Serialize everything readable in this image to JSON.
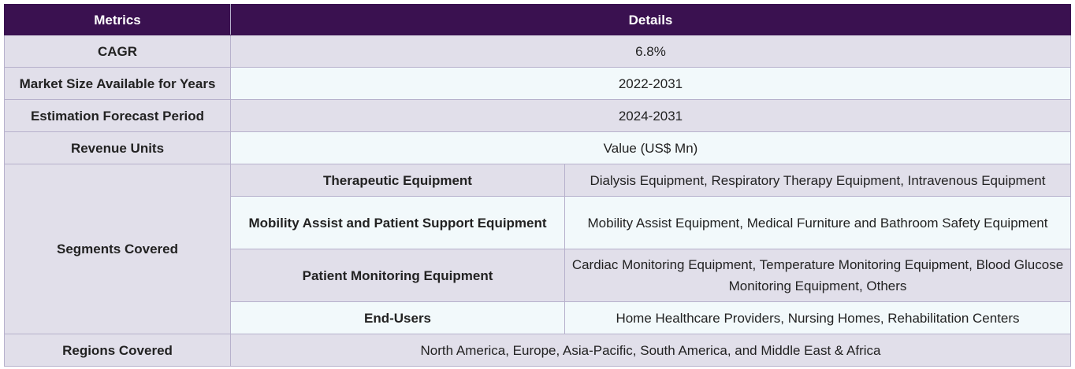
{
  "table": {
    "headers": [
      "Metrics",
      "Details"
    ],
    "rows": {
      "cagr": {
        "label": "CAGR",
        "value": "6.8%"
      },
      "market_size": {
        "label": "Market Size Available for Years",
        "value": "2022-2031"
      },
      "forecast": {
        "label": "Estimation Forecast Period",
        "value": "2024-2031"
      },
      "revenue_units": {
        "label": "Revenue Units",
        "value": "Value (US$ Mn)"
      },
      "segments": {
        "label": "Segments Covered",
        "items": [
          {
            "name": "Therapeutic Equipment",
            "value": "Dialysis Equipment, Respiratory Therapy Equipment, Intravenous Equipment"
          },
          {
            "name": "Mobility Assist and Patient Support Equipment",
            "value": "Mobility Assist Equipment, Medical Furniture and Bathroom Safety Equipment"
          },
          {
            "name": "Patient Monitoring Equipment",
            "value": "Cardiac Monitoring Equipment, Temperature Monitoring Equipment, Blood Glucose Monitoring Equipment, Others"
          },
          {
            "name": "End-Users",
            "value": "Home Healthcare Providers, Nursing Homes, Rehabilitation Centers"
          }
        ]
      },
      "regions": {
        "label": "Regions Covered",
        "value": "North America, Europe, Asia-Pacific, South America, and Middle East & Africa"
      }
    }
  }
}
